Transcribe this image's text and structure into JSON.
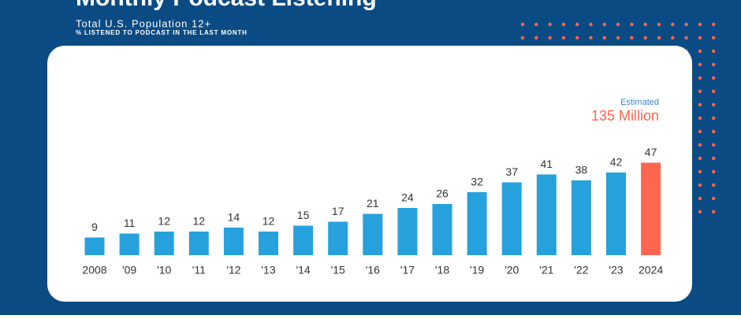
{
  "chart_data": {
    "type": "bar",
    "title": "Monthly Podcast Listening",
    "subtitle": "Total U.S. Population 12+",
    "caption": "% LISTENED TO PODCAST IN THE LAST MONTH",
    "annotations": [
      "Estimated",
      "135 Million"
    ],
    "categories": [
      "2008",
      "'09",
      "'10",
      "'11",
      "'12",
      "'13",
      "'14",
      "'15",
      "'16",
      "'17",
      "'18",
      "'19",
      "'20",
      "'21",
      "'22",
      "'23",
      "2024"
    ],
    "values": [
      9,
      11,
      12,
      12,
      14,
      12,
      15,
      17,
      21,
      24,
      26,
      32,
      37,
      41,
      38,
      42,
      47
    ],
    "colors": [
      "#27a1dc",
      "#27a1dc",
      "#27a1dc",
      "#27a1dc",
      "#27a1dc",
      "#27a1dc",
      "#27a1dc",
      "#27a1dc",
      "#27a1dc",
      "#27a1dc",
      "#27a1dc",
      "#27a1dc",
      "#27a1dc",
      "#27a1dc",
      "#27a1dc",
      "#27a1dc",
      "#ff6650"
    ]
  }
}
